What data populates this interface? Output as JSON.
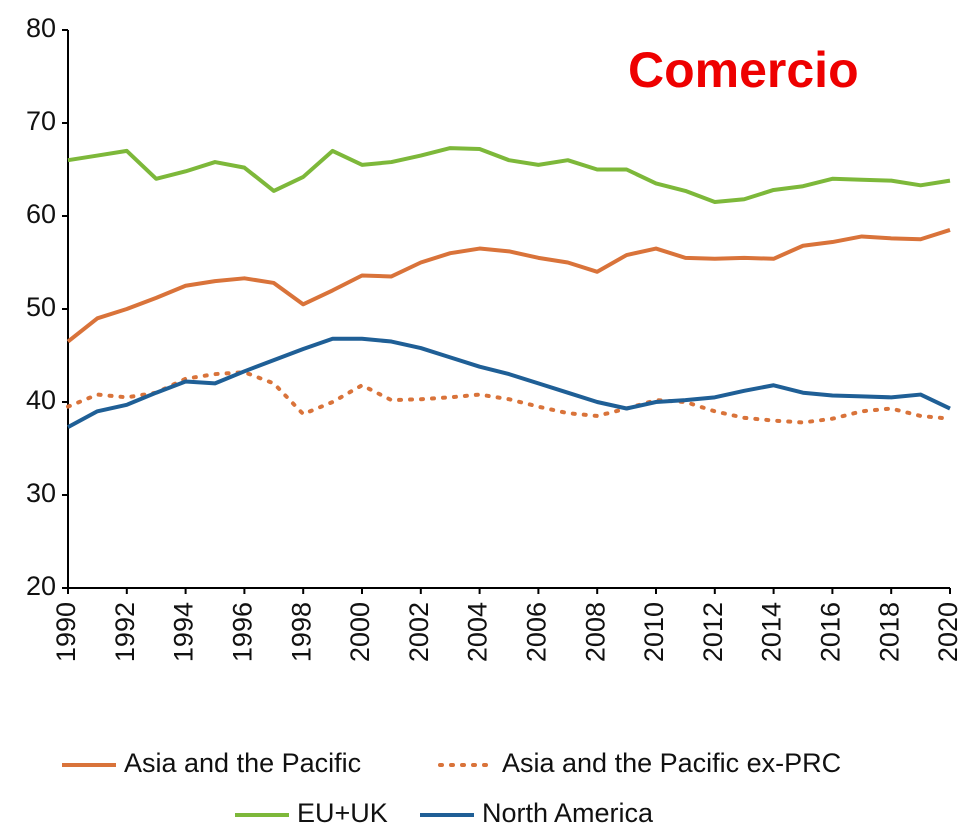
{
  "chart_data": {
    "type": "line",
    "title": "Comercio",
    "x": [
      1990,
      1991,
      1992,
      1993,
      1994,
      1995,
      1996,
      1997,
      1998,
      1999,
      2000,
      2001,
      2002,
      2003,
      2004,
      2005,
      2006,
      2007,
      2008,
      2009,
      2010,
      2011,
      2012,
      2013,
      2014,
      2015,
      2016,
      2017,
      2018,
      2019,
      2020
    ],
    "xlim": [
      1990,
      2020
    ],
    "xticks": [
      1990,
      1992,
      1994,
      1996,
      1998,
      2000,
      2002,
      2004,
      2006,
      2008,
      2010,
      2012,
      2014,
      2016,
      2018,
      2020
    ],
    "ylim": [
      20,
      80
    ],
    "yticks": [
      20,
      30,
      40,
      50,
      60,
      70,
      80
    ],
    "series": [
      {
        "name": "Asia and the Pacific",
        "color": "#d9733a",
        "style": "solid",
        "values": [
          46.5,
          49,
          50,
          51.2,
          52.5,
          53,
          53.3,
          52.8,
          50.5,
          52,
          53.6,
          53.5,
          55,
          56,
          56.5,
          56.2,
          55.5,
          55,
          54,
          55.8,
          56.5,
          55.5,
          55.4,
          55.5,
          55.4,
          56.8,
          57.2,
          57.8,
          57.6,
          57.5,
          58.5
        ]
      },
      {
        "name": "Asia and the Pacific ex-PRC",
        "color": "#d9733a",
        "style": "dotted",
        "values": [
          39.5,
          40.8,
          40.5,
          41,
          42.5,
          43,
          43.2,
          42,
          38.7,
          40,
          41.8,
          40.2,
          40.3,
          40.5,
          40.8,
          40.3,
          39.5,
          38.8,
          38.5,
          39.3,
          40.2,
          40,
          39,
          38.3,
          38,
          37.8,
          38.2,
          39,
          39.3,
          38.5,
          38.2
        ]
      },
      {
        "name": "EU+UK",
        "color": "#7db83a",
        "style": "solid",
        "values": [
          66,
          66.5,
          67,
          64,
          64.8,
          65.8,
          65.2,
          62.7,
          64.2,
          67,
          65.5,
          65.8,
          66.5,
          67.3,
          67.2,
          66,
          65.5,
          66,
          65,
          65,
          63.5,
          62.7,
          61.5,
          61.8,
          62.8,
          63.2,
          64,
          63.9,
          63.8,
          63.3,
          63.8
        ]
      },
      {
        "name": "North America",
        "color": "#1f5f96",
        "style": "solid",
        "values": [
          37.3,
          39,
          39.7,
          41,
          42.2,
          42,
          43.3,
          44.5,
          45.7,
          46.8,
          46.8,
          46.5,
          45.8,
          44.8,
          43.8,
          43,
          42,
          41,
          40,
          39.3,
          40,
          40.2,
          40.5,
          41.2,
          41.8,
          41,
          40.7,
          40.6,
          40.5,
          40.8,
          39.3
        ]
      }
    ]
  }
}
